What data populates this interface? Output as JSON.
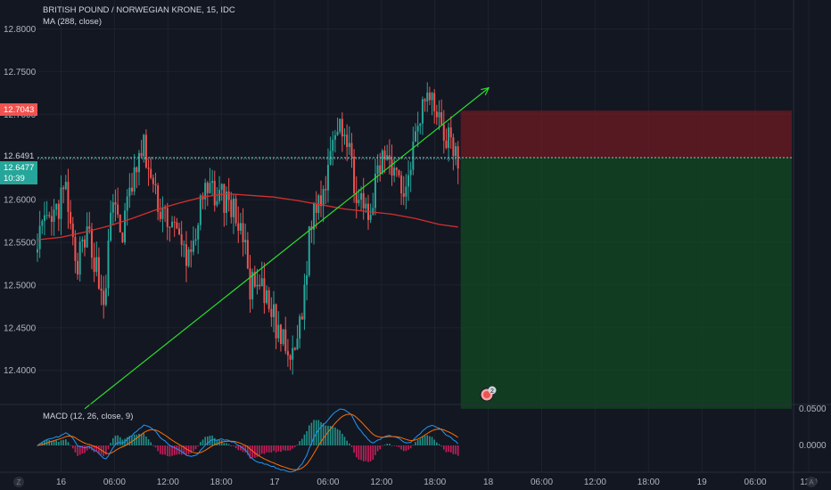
{
  "header": {
    "symbol_title": "BRITISH POUND / NORWEGIAN KRONE, 15, IDC",
    "indicator": "MA (288, close)"
  },
  "macd": {
    "title": "MACD (12, 26, close, 9)",
    "axis_labels": [
      "0.0500",
      "0.0000"
    ]
  },
  "price_axis": {
    "ticks": [
      "12.8000",
      "12.7500",
      "12.7000",
      "12.6500",
      "12.6000",
      "12.5500",
      "12.5000",
      "12.4500",
      "12.4000"
    ]
  },
  "badges": {
    "stop_price": "12.7043",
    "entry_price": "12.6491",
    "last_price": "12.6477",
    "countdown": "10:39"
  },
  "time_axis": {
    "labels": [
      "16",
      "06:00",
      "12:00",
      "18:00",
      "17",
      "06:00",
      "12:00",
      "18:00",
      "18",
      "06:00",
      "12:00",
      "18:00",
      "19",
      "06:00",
      "12:0"
    ]
  },
  "bottom_icons": [
    "Z",
    "A"
  ],
  "event_badge": "2",
  "colors": {
    "background": "#131722",
    "up": "#26a69a",
    "down": "#ef5350",
    "ma": "#d32f2f",
    "trendline": "#2ddc2d",
    "macd_line": "#2196f3",
    "signal_line": "#ff6d00"
  },
  "chart_data": {
    "type": "candlestick",
    "title": "BRITISH POUND / NORWEGIAN KRONE, 15, IDC",
    "ylim": [
      12.355,
      12.835
    ],
    "moving_average": {
      "name": "MA (288, close)",
      "points": [
        [
          0,
          12.553
        ],
        [
          10,
          12.556
        ],
        [
          20,
          12.562
        ],
        [
          30,
          12.569
        ],
        [
          40,
          12.578
        ],
        [
          50,
          12.588
        ],
        [
          60,
          12.596
        ],
        [
          70,
          12.603
        ],
        [
          80,
          12.607
        ],
        [
          90,
          12.605
        ],
        [
          100,
          12.603
        ],
        [
          110,
          12.599
        ],
        [
          120,
          12.594
        ],
        [
          130,
          12.589
        ],
        [
          140,
          12.586
        ],
        [
          150,
          12.583
        ],
        [
          160,
          12.578
        ],
        [
          170,
          12.571
        ],
        [
          178,
          12.568
        ]
      ]
    },
    "position": {
      "entry": 12.6491,
      "stop": 12.7043,
      "target_area_low": 12.355
    },
    "trendline": {
      "from": [
        20,
        12.355
      ],
      "to": [
        191,
        12.731
      ]
    },
    "macd": {
      "name": "MACD (12, 26, close, 9)",
      "ylim": [
        -0.028,
        0.05
      ]
    },
    "generated_series": "candles synthesized from a seeded path through these anchors (bar index, price)",
    "anchors": [
      [
        0,
        12.56
      ],
      [
        6,
        12.57
      ],
      [
        12,
        12.61
      ],
      [
        16,
        12.52
      ],
      [
        22,
        12.56
      ],
      [
        28,
        12.48
      ],
      [
        32,
        12.6
      ],
      [
        36,
        12.56
      ],
      [
        40,
        12.62
      ],
      [
        45,
        12.66
      ],
      [
        50,
        12.6
      ],
      [
        55,
        12.58
      ],
      [
        60,
        12.55
      ],
      [
        64,
        12.53
      ],
      [
        70,
        12.6
      ],
      [
        75,
        12.61
      ],
      [
        80,
        12.6
      ],
      [
        86,
        12.57
      ],
      [
        90,
        12.5
      ],
      [
        95,
        12.49
      ],
      [
        100,
        12.46
      ],
      [
        104,
        12.43
      ],
      [
        108,
        12.41
      ],
      [
        112,
        12.47
      ],
      [
        116,
        12.58
      ],
      [
        121,
        12.61
      ],
      [
        125,
        12.68
      ],
      [
        128,
        12.7
      ],
      [
        132,
        12.65
      ],
      [
        136,
        12.6
      ],
      [
        140,
        12.57
      ],
      [
        144,
        12.63
      ],
      [
        148,
        12.66
      ],
      [
        152,
        12.63
      ],
      [
        156,
        12.61
      ],
      [
        160,
        12.69
      ],
      [
        164,
        12.72
      ],
      [
        168,
        12.71
      ],
      [
        172,
        12.68
      ],
      [
        178,
        12.648
      ]
    ]
  }
}
